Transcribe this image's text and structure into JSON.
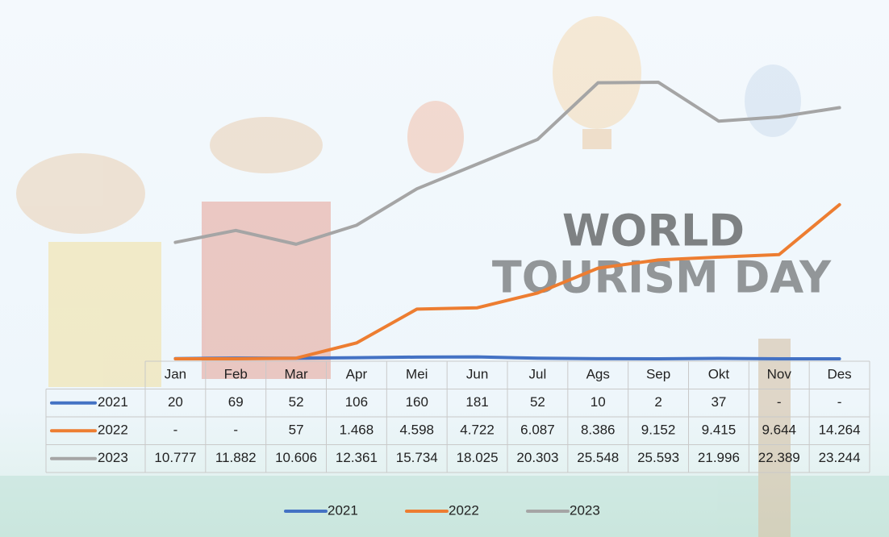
{
  "background_text": [
    "WORLD",
    "TOURISM DAY"
  ],
  "chart_data": {
    "type": "line",
    "categories": [
      "Jan",
      "Feb",
      "Mar",
      "Apr",
      "Mei",
      "Jun",
      "Jul",
      "Ags",
      "Sep",
      "Okt",
      "Nov",
      "Des"
    ],
    "ylim": [
      0,
      30000
    ],
    "legend": "bottom",
    "series": [
      {
        "name": "2021",
        "color": "#4472c4",
        "values": [
          20,
          69,
          52,
          106,
          160,
          181,
          52,
          10,
          2,
          37,
          0,
          0
        ],
        "value_labels": [
          "20",
          "69",
          "52",
          "106",
          "160",
          "181",
          "52",
          "10",
          "2",
          "37",
          "-",
          "-"
        ]
      },
      {
        "name": "2022",
        "color": "#ed7d31",
        "values": [
          0,
          0,
          57,
          1468,
          4598,
          4722,
          6087,
          8386,
          9152,
          9415,
          9644,
          14264
        ],
        "value_labels": [
          "-",
          "-",
          "57",
          "1.468",
          "4.598",
          "4.722",
          "6.087",
          "8.386",
          "9.152",
          "9.415",
          "9.644",
          "14.264"
        ]
      },
      {
        "name": "2023",
        "color": "#a5a5a5",
        "values": [
          10777,
          11882,
          10606,
          12361,
          15734,
          18025,
          20303,
          25548,
          25593,
          21996,
          22389,
          23244
        ],
        "value_labels": [
          "10.777",
          "11.882",
          "10.606",
          "12.361",
          "15.734",
          "18.025",
          "20.303",
          "25.548",
          "25.593",
          "21.996",
          "22.389",
          "23.244"
        ]
      }
    ]
  }
}
